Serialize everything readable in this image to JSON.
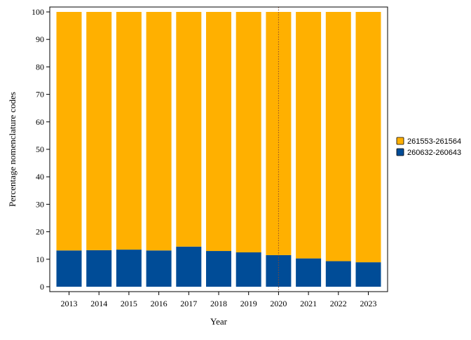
{
  "chart_data": {
    "type": "bar",
    "stacked": true,
    "xlabel": "Year",
    "ylabel": "Percentage nomenclature codes",
    "ylim": [
      0,
      100
    ],
    "yticks": [
      0,
      10,
      20,
      30,
      40,
      50,
      60,
      70,
      80,
      90,
      100
    ],
    "categories": [
      "2013",
      "2014",
      "2015",
      "2016",
      "2017",
      "2018",
      "2019",
      "2020",
      "2021",
      "2022",
      "2023"
    ],
    "series": [
      {
        "name": "260632-260643",
        "color": "#004c97",
        "values": [
          13.2,
          13.3,
          13.5,
          13.2,
          14.6,
          13.0,
          12.5,
          11.5,
          10.3,
          9.3,
          8.9
        ]
      },
      {
        "name": "261553-261564",
        "color": "#ffb000",
        "values": [
          86.8,
          86.7,
          86.5,
          86.8,
          85.4,
          87.0,
          87.5,
          88.5,
          89.7,
          90.7,
          91.1
        ]
      }
    ],
    "reference_line": {
      "x": "2020",
      "style": "dotted",
      "color": "#8b4a2b"
    },
    "grid": false,
    "legend": {
      "placement": "right",
      "entries": [
        {
          "label": "261553-261564",
          "color": "#ffb000"
        },
        {
          "label": "260632-260643",
          "color": "#004c97"
        }
      ]
    }
  }
}
